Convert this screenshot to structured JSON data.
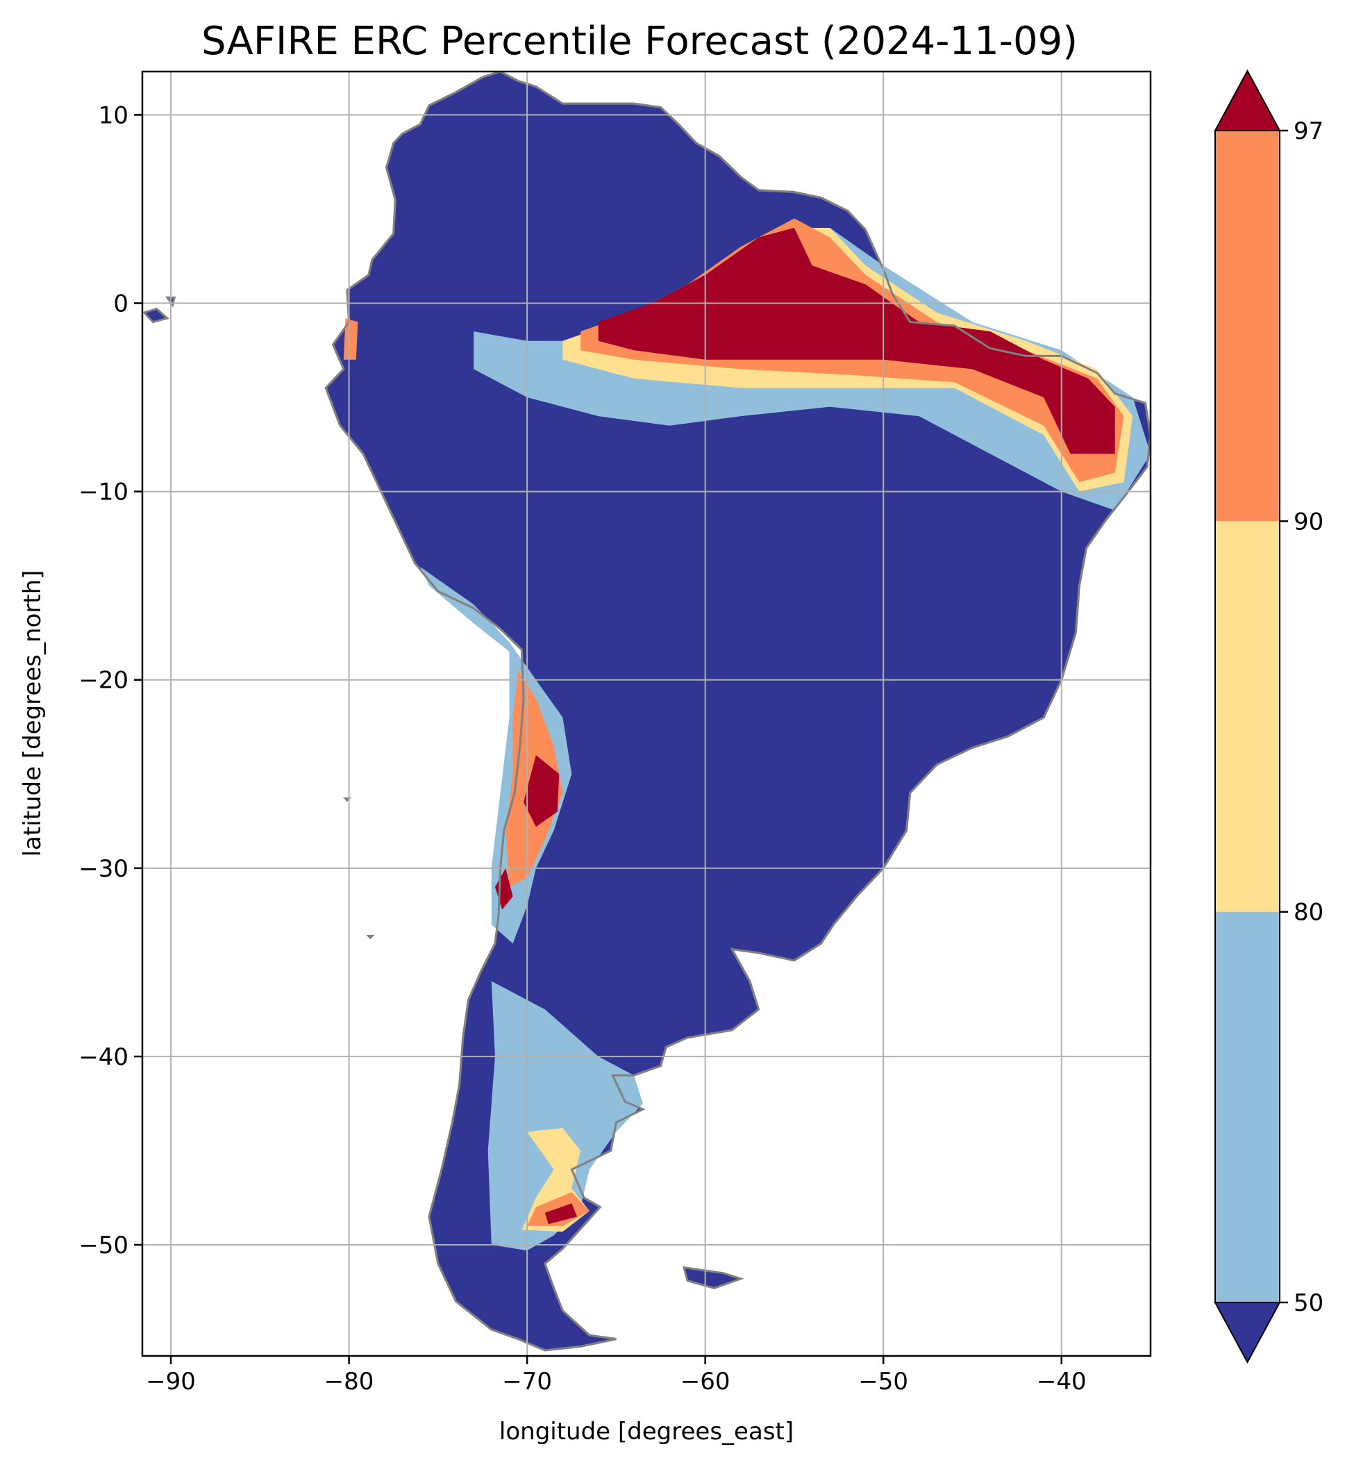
{
  "title": "SAFIRE ERC Percentile Forecast (2024-11-09)",
  "map": {
    "xlabel": "longitude [degrees_east]",
    "ylabel": "latitude [degrees_north]",
    "lon_range": [
      -91.6,
      -35.0
    ],
    "lat_range": [
      -55.9,
      12.3
    ],
    "lon_ticks": [
      -90,
      -80,
      -70,
      -60,
      -50,
      -40
    ],
    "lat_ticks": [
      10,
      0,
      -10,
      -20,
      -30,
      -40,
      -50
    ],
    "lon_tick_labels": [
      "−90",
      "−80",
      "−70",
      "−60",
      "−50",
      "−40"
    ],
    "lat_tick_labels": [
      "10",
      "0",
      "−10",
      "−20",
      "−30",
      "−40",
      "−50"
    ],
    "grid": true,
    "boundaries_color": "#808080",
    "land_base_color": "#313695",
    "regions": [
      {
        "name": "north-low-band",
        "category": "50-80",
        "color": "#91bfdb",
        "polygon": [
          [
            -73,
            -1.5
          ],
          [
            -70,
            -2
          ],
          [
            -66,
            -2
          ],
          [
            -62,
            -1
          ],
          [
            -58,
            0.5
          ],
          [
            -56,
            2.5
          ],
          [
            -53,
            4
          ],
          [
            -50,
            2
          ],
          [
            -45,
            -1
          ],
          [
            -40,
            -2.5
          ],
          [
            -36,
            -5
          ],
          [
            -35,
            -8
          ],
          [
            -37,
            -11
          ],
          [
            -40,
            -10
          ],
          [
            -44,
            -8
          ],
          [
            -48,
            -6
          ],
          [
            -53,
            -5.5
          ],
          [
            -58,
            -6
          ],
          [
            -62,
            -6.5
          ],
          [
            -66,
            -6
          ],
          [
            -70,
            -5
          ],
          [
            -73,
            -3.5
          ]
        ]
      },
      {
        "name": "north-mid-band",
        "category": "80-90",
        "color": "#fee090",
        "polygon": [
          [
            -68,
            -2
          ],
          [
            -65,
            -1
          ],
          [
            -62,
            0
          ],
          [
            -59,
            2
          ],
          [
            -56,
            4
          ],
          [
            -53,
            4
          ],
          [
            -51,
            2
          ],
          [
            -47,
            -0.5
          ],
          [
            -42,
            -2
          ],
          [
            -38,
            -3.5
          ],
          [
            -36,
            -6
          ],
          [
            -36.5,
            -9.5
          ],
          [
            -39,
            -10
          ],
          [
            -41,
            -7
          ],
          [
            -46,
            -4.5
          ],
          [
            -52,
            -4.5
          ],
          [
            -58,
            -4.5
          ],
          [
            -64,
            -4
          ],
          [
            -68,
            -3
          ]
        ]
      },
      {
        "name": "north-orange-band",
        "category": "90-97",
        "color": "#fc8d59",
        "polygon": [
          [
            -67,
            -1.5
          ],
          [
            -64,
            -0.5
          ],
          [
            -61,
            1
          ],
          [
            -58,
            3
          ],
          [
            -55,
            4.5
          ],
          [
            -53,
            3.5
          ],
          [
            -51,
            1.5
          ],
          [
            -47,
            -1
          ],
          [
            -42,
            -2.5
          ],
          [
            -38,
            -4
          ],
          [
            -36.5,
            -6
          ],
          [
            -37,
            -9
          ],
          [
            -39,
            -9.5
          ],
          [
            -41,
            -6.5
          ],
          [
            -46,
            -4.2
          ],
          [
            -52,
            -3.8
          ],
          [
            -58,
            -3.5
          ],
          [
            -64,
            -3
          ],
          [
            -67,
            -2.5
          ]
        ]
      },
      {
        "name": "north-high-core",
        "category": ">97",
        "color": "#a50026",
        "polygon": [
          [
            -66,
            -1
          ],
          [
            -63,
            0
          ],
          [
            -60,
            1.5
          ],
          [
            -57,
            3.5
          ],
          [
            -55,
            4
          ],
          [
            -54,
            2
          ],
          [
            -51,
            1
          ],
          [
            -48,
            -1
          ],
          [
            -44,
            -1.5
          ],
          [
            -41,
            -3
          ],
          [
            -38.5,
            -4
          ],
          [
            -37,
            -5.5
          ],
          [
            -37,
            -8
          ],
          [
            -39.5,
            -8
          ],
          [
            -41,
            -5
          ],
          [
            -45,
            -3.5
          ],
          [
            -50,
            -3
          ],
          [
            -55,
            -3
          ],
          [
            -60,
            -3
          ],
          [
            -64,
            -2.5
          ],
          [
            -66,
            -2
          ]
        ]
      },
      {
        "name": "andes-low-strip",
        "category": "50-80",
        "color": "#91bfdb",
        "polygon": [
          [
            -76,
            -14
          ],
          [
            -73,
            -16
          ],
          [
            -71,
            -18
          ],
          [
            -69.5,
            -20
          ],
          [
            -68,
            -22
          ],
          [
            -67.5,
            -25
          ],
          [
            -68.5,
            -28
          ],
          [
            -69.5,
            -30
          ],
          [
            -70,
            -32
          ],
          [
            -70.8,
            -34
          ],
          [
            -72,
            -33
          ],
          [
            -72,
            -30
          ],
          [
            -71.5,
            -26
          ],
          [
            -71,
            -22
          ],
          [
            -71,
            -18.5
          ],
          [
            -73,
            -17
          ],
          [
            -75.5,
            -15
          ]
        ]
      },
      {
        "name": "andes-orange-strip",
        "category": "90-97",
        "color": "#fc8d59",
        "polygon": [
          [
            -70.5,
            -19.5
          ],
          [
            -69.5,
            -21
          ],
          [
            -68.5,
            -23.5
          ],
          [
            -68,
            -26
          ],
          [
            -69,
            -28.5
          ],
          [
            -70,
            -30.5
          ],
          [
            -71,
            -31
          ],
          [
            -71.2,
            -28
          ],
          [
            -70.8,
            -25
          ],
          [
            -70.8,
            -22
          ]
        ]
      },
      {
        "name": "andes-high-patch",
        "category": ">97",
        "color": "#a50026",
        "polygon": [
          [
            -69.5,
            -24
          ],
          [
            -68.2,
            -25
          ],
          [
            -68.3,
            -27
          ],
          [
            -69.5,
            -27.8
          ],
          [
            -70.2,
            -26.5
          ]
        ]
      },
      {
        "name": "andes-high-south",
        "category": ">97",
        "color": "#a50026",
        "polygon": [
          [
            -71.2,
            -30
          ],
          [
            -70.8,
            -31.5
          ],
          [
            -71.4,
            -32.2
          ],
          [
            -71.8,
            -31
          ]
        ]
      },
      {
        "name": "patagonia-low-region",
        "category": "50-80",
        "color": "#91bfdb",
        "polygon": [
          [
            -72,
            -36
          ],
          [
            -69,
            -37.5
          ],
          [
            -66,
            -40
          ],
          [
            -64,
            -41
          ],
          [
            -63.5,
            -42.5
          ],
          [
            -65,
            -44
          ],
          [
            -66.5,
            -46
          ],
          [
            -67,
            -48
          ],
          [
            -68.5,
            -49.5
          ],
          [
            -70,
            -50.3
          ],
          [
            -72,
            -50
          ],
          [
            -72.2,
            -45
          ],
          [
            -71.8,
            -40
          ]
        ]
      },
      {
        "name": "patagonia-mid-patch",
        "category": "80-90",
        "color": "#fee090",
        "polygon": [
          [
            -70,
            -44
          ],
          [
            -68,
            -43.8
          ],
          [
            -67,
            -45
          ],
          [
            -67.5,
            -47
          ],
          [
            -66.5,
            -48.2
          ],
          [
            -68,
            -49.3
          ],
          [
            -70.3,
            -49.2
          ],
          [
            -69.5,
            -47.5
          ],
          [
            -68.5,
            -46
          ]
        ]
      },
      {
        "name": "patagonia-orange-patch",
        "category": "90-97",
        "color": "#fc8d59",
        "polygon": [
          [
            -69.5,
            -48
          ],
          [
            -67.5,
            -47.2
          ],
          [
            -66.5,
            -48.2
          ],
          [
            -68,
            -49
          ],
          [
            -70,
            -49
          ]
        ]
      },
      {
        "name": "patagonia-high-patch",
        "category": ">97",
        "color": "#a50026",
        "polygon": [
          [
            -69,
            -48.3
          ],
          [
            -67.5,
            -47.8
          ],
          [
            -67.2,
            -48.5
          ],
          [
            -68.8,
            -48.9
          ]
        ]
      },
      {
        "name": "ecuador-coast-patch",
        "category": "90-97",
        "color": "#fc8d59",
        "polygon": [
          [
            -80.2,
            -0.8
          ],
          [
            -79.5,
            -1
          ],
          [
            -79.6,
            -3
          ],
          [
            -80.3,
            -3
          ]
        ]
      }
    ]
  },
  "colorbar": {
    "tick_labels": [
      "97",
      "90",
      "80",
      "50"
    ],
    "bins": [
      {
        "label": "<50",
        "color": "#313695"
      },
      {
        "label": "50-80",
        "color": "#91bfdb"
      },
      {
        "label": "80-90",
        "color": "#fee090"
      },
      {
        "label": "90-97",
        "color": "#fc8d59"
      },
      {
        "label": ">97",
        "color": "#a50026"
      }
    ]
  }
}
